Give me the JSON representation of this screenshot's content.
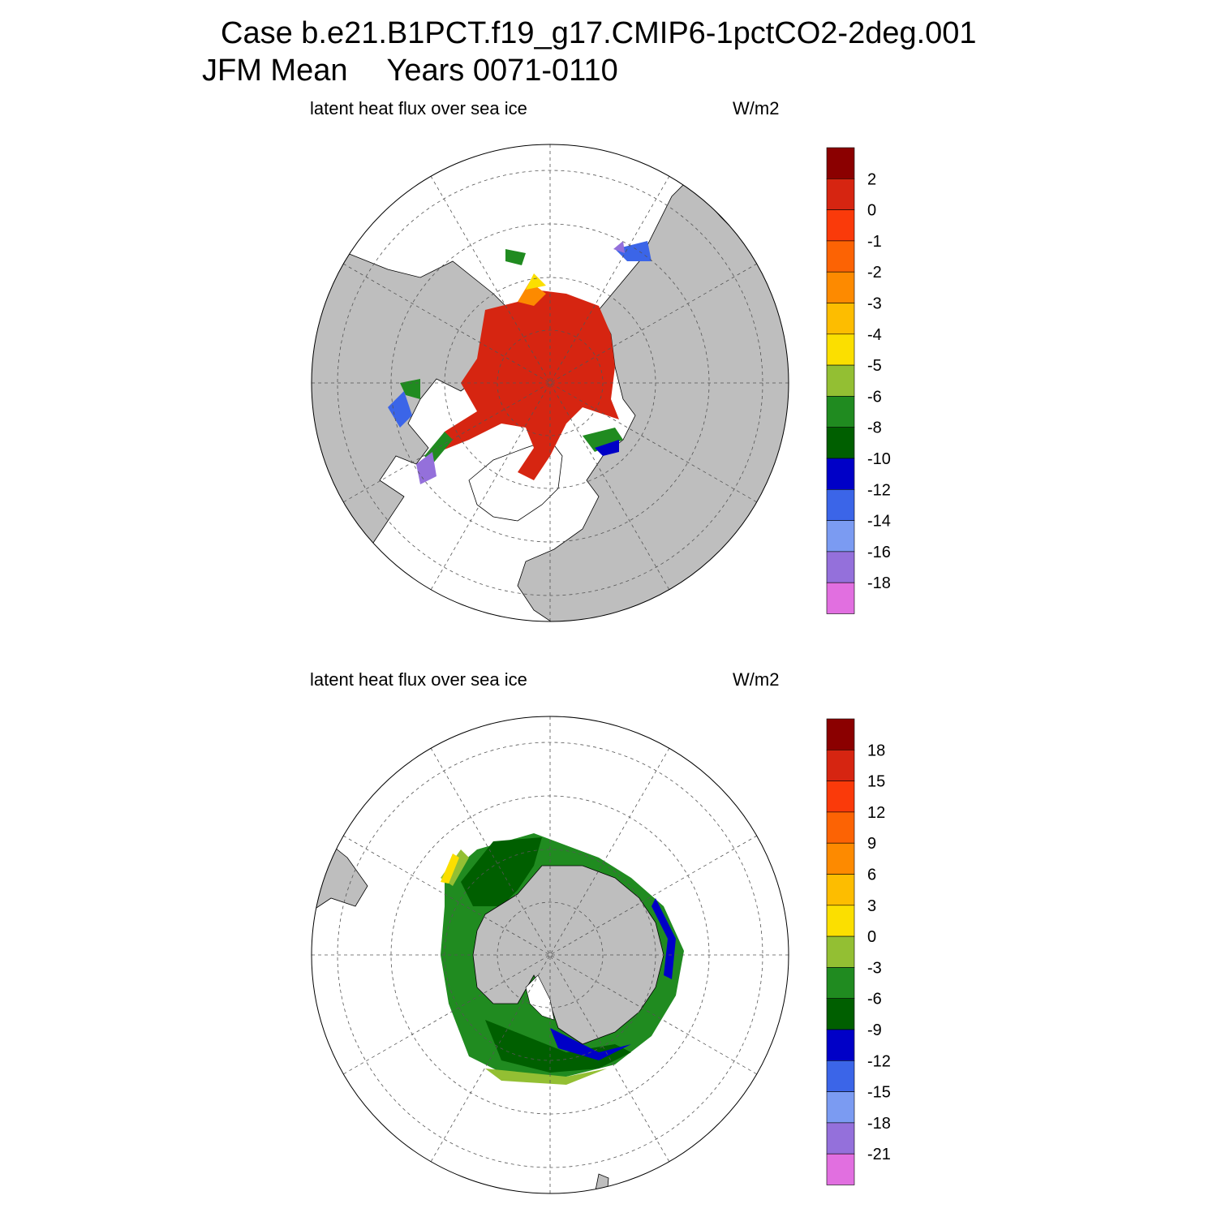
{
  "header": {
    "case_title": "Case b.e21.B1PCT.f19_g17.CMIP6-1pctCO2-2deg.001",
    "season": "JFM Mean",
    "years": "Years 0071-0110"
  },
  "panels": [
    {
      "id": "north",
      "subtitle": "latent heat flux over sea ice",
      "units": "W/m2",
      "colorbar": {
        "colors": [
          "#8b0000",
          "#d62511",
          "#fa3a0a",
          "#fc6304",
          "#fd8a00",
          "#fdbd00",
          "#fbdf00",
          "#93bf33",
          "#208b20",
          "#005f00",
          "#0000c7",
          "#3b65e8",
          "#7b9bf2",
          "#9470db",
          "#e16fe0"
        ],
        "labels": [
          "2",
          "0",
          "-1",
          "-2",
          "-3",
          "-4",
          "-5",
          "-6",
          "-8",
          "-10",
          "-12",
          "-14",
          "-16",
          "-18"
        ]
      }
    },
    {
      "id": "south",
      "subtitle": "latent heat flux over sea ice",
      "units": "W/m2",
      "colorbar": {
        "colors": [
          "#8b0000",
          "#d62511",
          "#fa3a0a",
          "#fc6304",
          "#fd8a00",
          "#fdbd00",
          "#fbdf00",
          "#93bf33",
          "#208b20",
          "#005f00",
          "#0000c7",
          "#3b65e8",
          "#7b9bf2",
          "#9470db",
          "#e16fe0"
        ],
        "labels": [
          "18",
          "15",
          "12",
          "9",
          "6",
          "3",
          "0",
          "-3",
          "-6",
          "-9",
          "-12",
          "-15",
          "-18",
          "-21"
        ]
      }
    }
  ]
}
